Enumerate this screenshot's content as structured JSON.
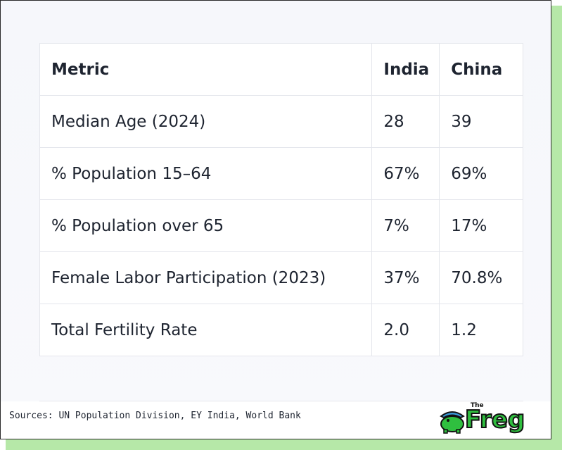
{
  "table": {
    "headers": [
      "Metric",
      "India",
      "China"
    ],
    "rows": [
      [
        "Median Age (2024)",
        "28",
        "39"
      ],
      [
        "% Population 15–64",
        "67%",
        "69%"
      ],
      [
        "% Population over 65",
        "7%",
        "17%"
      ],
      [
        "Female Labor Participation (2023)",
        "37%",
        "70.8%"
      ],
      [
        "Total Fertility Rate",
        "2.0",
        "1.2"
      ]
    ]
  },
  "footer": {
    "sources": "Sources: UN Population Division, EY India, World Bank"
  },
  "logo": {
    "small": "The",
    "word": "Freg",
    "icon": "frog-mascot-icon",
    "brand_color": "#2fbf3f"
  },
  "colors": {
    "shadow": "#b6e8a8",
    "border": "#e4e6ec",
    "text": "#1e2430"
  }
}
